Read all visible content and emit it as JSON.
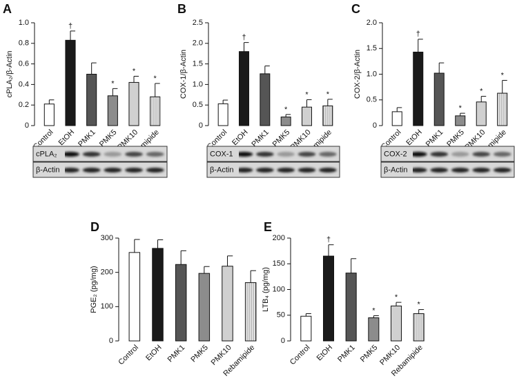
{
  "chart_data": [
    {
      "type": "bar",
      "label": "A",
      "ylabel": "cPLA₂/β-Actin",
      "categories": [
        "Control",
        "EtOH",
        "PMK1",
        "PMK5",
        "PMK10",
        "Rebamipide"
      ],
      "values": [
        0.21,
        0.83,
        0.5,
        0.29,
        0.42,
        0.28
      ],
      "errors": [
        0.04,
        0.09,
        0.11,
        0.07,
        0.06,
        0.13
      ],
      "markers": [
        null,
        "†",
        null,
        "*",
        "*",
        "*"
      ],
      "colors": [
        "#ffffff",
        "#1a1a1a",
        "#555555",
        "#8c8c8c",
        "#d0d0d0",
        "#e8e8e8"
      ],
      "hatch": [
        false,
        false,
        false,
        false,
        false,
        true
      ],
      "ylim": [
        0,
        1
      ],
      "yticks": [
        0,
        0.2,
        0.4,
        0.6,
        0.8,
        {
          "value": 1,
          "label": "1.0"
        }
      ],
      "blots": [
        "cPLA₂",
        "β-Actin"
      ]
    },
    {
      "type": "bar",
      "label": "B",
      "ylabel": "COX-1/β-Actin",
      "categories": [
        "Control",
        "EtOH",
        "PMK1",
        "PMK5",
        "PMK10",
        "Rebamipide"
      ],
      "values": [
        0.53,
        1.8,
        1.26,
        0.21,
        0.45,
        0.48
      ],
      "errors": [
        0.09,
        0.22,
        0.19,
        0.06,
        0.18,
        0.16
      ],
      "markers": [
        null,
        "†",
        null,
        "*",
        "*",
        "*"
      ],
      "colors": [
        "#ffffff",
        "#1a1a1a",
        "#555555",
        "#8c8c8c",
        "#d0d0d0",
        "#e8e8e8"
      ],
      "hatch": [
        false,
        false,
        false,
        false,
        false,
        true
      ],
      "ylim": [
        0,
        2.5
      ],
      "yticks": [
        0,
        0.5,
        {
          "value": 1,
          "label": "1.0"
        },
        1.5,
        {
          "value": 2,
          "label": "2.0"
        },
        2.5
      ],
      "blots": [
        "COX-1",
        "β-Actin"
      ]
    },
    {
      "type": "bar",
      "label": "C",
      "ylabel": "COX-2/β-Actin",
      "categories": [
        "Control",
        "EtOH",
        "PMK1",
        "PMK5",
        "PMK10",
        "Rebamipide"
      ],
      "values": [
        0.27,
        1.43,
        1.02,
        0.19,
        0.46,
        0.63
      ],
      "errors": [
        0.08,
        0.25,
        0.2,
        0.05,
        0.11,
        0.25
      ],
      "markers": [
        null,
        "†",
        null,
        "*",
        "*",
        "*"
      ],
      "colors": [
        "#ffffff",
        "#1a1a1a",
        "#555555",
        "#8c8c8c",
        "#d0d0d0",
        "#e8e8e8"
      ],
      "hatch": [
        false,
        false,
        false,
        false,
        false,
        true
      ],
      "ylim": [
        0,
        2
      ],
      "yticks": [
        0,
        0.5,
        {
          "value": 1,
          "label": "1.0"
        },
        1.5,
        {
          "value": 2,
          "label": "2.0"
        }
      ],
      "blots": [
        "COX-2",
        "β-Actin"
      ]
    },
    {
      "type": "bar",
      "label": "D",
      "ylabel": "PGE₂ (pg/mg)",
      "categories": [
        "Control",
        "EtOH",
        "PMK1",
        "PMK5",
        "PMK10",
        "Rebamipide"
      ],
      "values": [
        258,
        270,
        223,
        197,
        218,
        170
      ],
      "errors": [
        38,
        25,
        40,
        20,
        30,
        35
      ],
      "markers": [
        null,
        null,
        null,
        null,
        null,
        null
      ],
      "colors": [
        "#ffffff",
        "#1a1a1a",
        "#555555",
        "#8c8c8c",
        "#d0d0d0",
        "#e8e8e8"
      ],
      "hatch": [
        false,
        false,
        false,
        false,
        false,
        true
      ],
      "ylim": [
        0,
        300
      ],
      "yticks": [
        0,
        100,
        200,
        300
      ]
    },
    {
      "type": "bar",
      "label": "E",
      "ylabel": "LTB₄ (pg/mg)",
      "categories": [
        "Control",
        "EtOH",
        "PMK1",
        "PMK5",
        "PMK10",
        "Rebamipide"
      ],
      "values": [
        48,
        165,
        132,
        45,
        68,
        53
      ],
      "errors": [
        5,
        22,
        28,
        4,
        7,
        8
      ],
      "markers": [
        null,
        "†",
        null,
        "*",
        "*",
        "*"
      ],
      "colors": [
        "#ffffff",
        "#1a1a1a",
        "#555555",
        "#8c8c8c",
        "#d0d0d0",
        "#e8e8e8"
      ],
      "hatch": [
        false,
        false,
        false,
        false,
        false,
        true
      ],
      "ylim": [
        0,
        200
      ],
      "yticks": [
        0,
        50,
        100,
        150,
        200
      ]
    }
  ]
}
